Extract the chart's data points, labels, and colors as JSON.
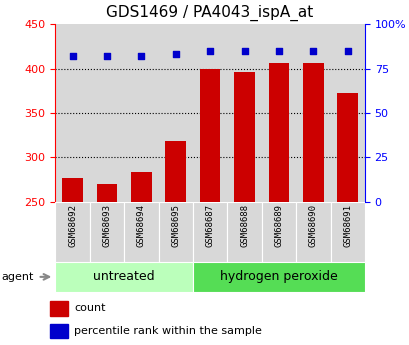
{
  "title": "GDS1469 / PA4043_ispA_at",
  "samples": [
    "GSM68692",
    "GSM68693",
    "GSM68694",
    "GSM68695",
    "GSM68687",
    "GSM68688",
    "GSM68689",
    "GSM68690",
    "GSM68691"
  ],
  "counts": [
    277,
    270,
    284,
    318,
    400,
    396,
    406,
    406,
    373
  ],
  "percentiles": [
    82,
    82,
    82,
    83,
    85,
    85,
    85,
    85,
    85
  ],
  "group_info": [
    {
      "label": "untreated",
      "start": 0,
      "end": 3,
      "color": "#bbffbb"
    },
    {
      "label": "hydrogen peroxide",
      "start": 4,
      "end": 8,
      "color": "#55dd55"
    }
  ],
  "bar_color": "#cc0000",
  "dot_color": "#0000cc",
  "bar_bottom": 250,
  "ylim_left": [
    250,
    450
  ],
  "ylim_right": [
    0,
    100
  ],
  "yticks_left": [
    250,
    300,
    350,
    400,
    450
  ],
  "yticks_right": [
    0,
    25,
    50,
    75,
    100
  ],
  "ytick_labels_right": [
    "0",
    "25",
    "50",
    "75",
    "100%"
  ],
  "grid_lines": [
    300,
    350,
    400
  ],
  "legend_count_label": "count",
  "legend_pct_label": "percentile rank within the sample",
  "agent_label": "agent",
  "title_fontsize": 11,
  "tick_fontsize": 8,
  "label_fontsize": 8,
  "sample_fontsize": 6.5,
  "group_fontsize": 9
}
